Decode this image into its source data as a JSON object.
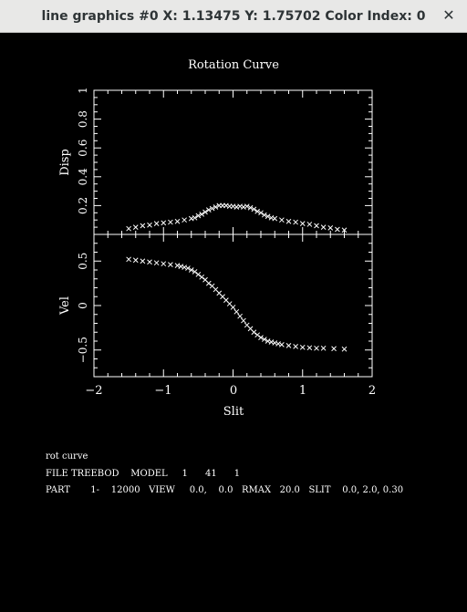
{
  "window": {
    "title": "line graphics #0 X: 1.13475 Y: 1.75702 Color Index: 0",
    "close_glyph": "✕"
  },
  "chart_data": [
    {
      "type": "scatter",
      "title": "Rotation Curve",
      "xlabel": "Slit",
      "ylabel": "Disp",
      "xlim": [
        -2,
        2
      ],
      "ylim": [
        0,
        1
      ],
      "xticks": [
        "−2",
        "−1",
        "0",
        "1",
        "2"
      ],
      "yticks": [
        "0.2",
        "0.4",
        "0.6",
        "0.8",
        "1"
      ],
      "marker": "×",
      "series": [
        {
          "x": [
            -1.5,
            -1.4,
            -1.3,
            -1.2,
            -1.1,
            -1.0,
            -0.9,
            -0.8,
            -0.7,
            -0.6,
            -0.55,
            -0.5,
            -0.45,
            -0.4,
            -0.35,
            -0.3,
            -0.25,
            -0.2,
            -0.15,
            -0.1,
            -0.05,
            0.0,
            0.05,
            0.1,
            0.15,
            0.2,
            0.25,
            0.3,
            0.35,
            0.4,
            0.45,
            0.5,
            0.55,
            0.6,
            0.7,
            0.8,
            0.9,
            1.0,
            1.1,
            1.2,
            1.3,
            1.4,
            1.5,
            1.6
          ],
          "y": [
            0.04,
            0.05,
            0.06,
            0.065,
            0.075,
            0.08,
            0.085,
            0.09,
            0.1,
            0.11,
            0.115,
            0.13,
            0.14,
            0.155,
            0.17,
            0.18,
            0.19,
            0.2,
            0.2,
            0.2,
            0.195,
            0.195,
            0.19,
            0.195,
            0.19,
            0.195,
            0.185,
            0.175,
            0.16,
            0.15,
            0.135,
            0.125,
            0.115,
            0.11,
            0.1,
            0.09,
            0.085,
            0.075,
            0.07,
            0.06,
            0.05,
            0.045,
            0.035,
            0.03
          ]
        }
      ]
    },
    {
      "type": "scatter",
      "xlabel": "Slit",
      "ylabel": "Vel",
      "xlim": [
        -2,
        2
      ],
      "ylim": [
        -0.8,
        0.8
      ],
      "xticks": [
        "−2",
        "−1",
        "0",
        "1",
        "2"
      ],
      "yticks": [
        "−0.5",
        "0",
        "0.5"
      ],
      "marker": "×",
      "series": [
        {
          "x": [
            -1.5,
            -1.4,
            -1.3,
            -1.2,
            -1.1,
            -1.0,
            -0.9,
            -0.8,
            -0.75,
            -0.7,
            -0.65,
            -0.6,
            -0.55,
            -0.5,
            -0.45,
            -0.4,
            -0.35,
            -0.3,
            -0.25,
            -0.2,
            -0.15,
            -0.1,
            -0.05,
            0.0,
            0.05,
            0.1,
            0.15,
            0.2,
            0.25,
            0.3,
            0.35,
            0.4,
            0.45,
            0.5,
            0.55,
            0.6,
            0.65,
            0.7,
            0.8,
            0.9,
            1.0,
            1.1,
            1.2,
            1.3,
            1.45,
            1.6
          ],
          "y": [
            0.52,
            0.51,
            0.5,
            0.49,
            0.48,
            0.47,
            0.46,
            0.45,
            0.44,
            0.43,
            0.42,
            0.4,
            0.38,
            0.35,
            0.32,
            0.29,
            0.25,
            0.22,
            0.18,
            0.14,
            0.1,
            0.06,
            0.02,
            -0.02,
            -0.07,
            -0.12,
            -0.17,
            -0.22,
            -0.26,
            -0.3,
            -0.33,
            -0.36,
            -0.38,
            -0.4,
            -0.41,
            -0.42,
            -0.43,
            -0.44,
            -0.45,
            -0.46,
            -0.47,
            -0.475,
            -0.48,
            -0.48,
            -0.485,
            -0.49
          ]
        }
      ]
    }
  ],
  "info_text": {
    "line1": "rot curve",
    "line2": "FILE TREEBOD    MODEL     1      41      1",
    "line3": "PART       1-    12000   VIEW     0.0,    0.0   RMAX   20.0   SLIT    0.0, 2.0, 0.30"
  }
}
